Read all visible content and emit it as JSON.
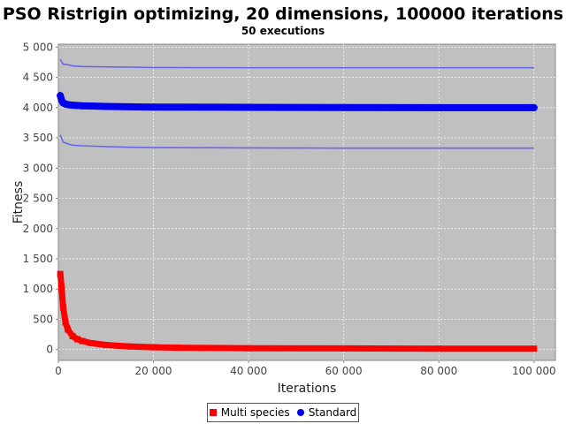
{
  "chart_data": {
    "type": "line",
    "title": "PSO Ristrigin optimizing, 20 dimensions, 100000 iterations",
    "subtitle": "50 executions",
    "xlabel": "Iterations",
    "ylabel": "Fitness",
    "xlim": [
      0,
      104500
    ],
    "ylim": [
      -180,
      5050
    ],
    "x_ticks": [
      0,
      20000,
      40000,
      60000,
      80000,
      100000
    ],
    "x_tick_labels": [
      "0",
      "20 000",
      "40 000",
      "60 000",
      "80 000",
      "100 000"
    ],
    "y_ticks": [
      0,
      500,
      1000,
      1500,
      2000,
      2500,
      3000,
      3500,
      4000,
      4500,
      5000
    ],
    "y_tick_labels": [
      "0",
      "500",
      "1 000",
      "1 500",
      "2 000",
      "2 500",
      "3 000",
      "3 500",
      "4 000",
      "4 500",
      "5 000"
    ],
    "grid": true,
    "legend_position": "bottom",
    "series": [
      {
        "name": "Multi species",
        "color": "#ff0000",
        "marker": "square",
        "x": [
          400,
          700,
          1000,
          1500,
          2000,
          3000,
          4000,
          5000,
          7000,
          10000,
          15000,
          20000,
          25000,
          30000,
          40000,
          60000,
          80000,
          100000
        ],
        "y": [
          1250,
          1000,
          700,
          450,
          330,
          220,
          170,
          140,
          105,
          75,
          50,
          38,
          30,
          26,
          22,
          18,
          15,
          14
        ]
      },
      {
        "name": "Standard",
        "color": "#0000ee",
        "marker": "circle",
        "x": [
          400,
          700,
          1000,
          1500,
          2000,
          3000,
          5000,
          10000,
          20000,
          40000,
          60000,
          80000,
          100000
        ],
        "y": [
          4200,
          4120,
          4080,
          4060,
          4050,
          4040,
          4030,
          4020,
          4010,
          4005,
          4002,
          4000,
          4000
        ]
      },
      {
        "color": "#6666ee",
        "marker": "none",
        "x": [
          400,
          1000,
          2000,
          3000,
          5000,
          10000,
          15000,
          20000,
          40000,
          60000,
          80000,
          100000
        ],
        "y": [
          4800,
          4720,
          4710,
          4690,
          4680,
          4675,
          4670,
          4665,
          4660,
          4660,
          4660,
          4660
        ]
      },
      {
        "color": "#6666ee",
        "marker": "none",
        "x": [
          400,
          1000,
          2000,
          3000,
          5000,
          10000,
          15000,
          20000,
          40000,
          60000,
          80000,
          100000
        ],
        "y": [
          3550,
          3430,
          3400,
          3380,
          3370,
          3355,
          3345,
          3340,
          3335,
          3330,
          3330,
          3330
        ]
      }
    ]
  },
  "legend": {
    "items": [
      {
        "label": "Multi species",
        "color": "#ff0000"
      },
      {
        "label": "Standard",
        "color": "#0000ee"
      }
    ]
  }
}
